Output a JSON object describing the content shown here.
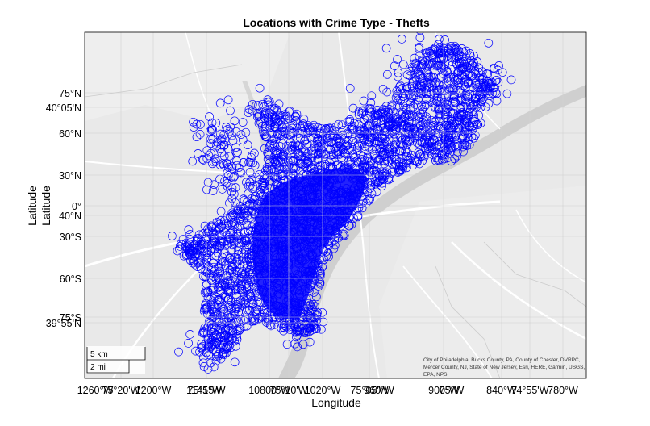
{
  "title": "Locations with Crime Type - Thefts",
  "xlabel": "Longitude",
  "ylabels": [
    "Latitude",
    "Latitude"
  ],
  "y_ticks": [
    {
      "label": "75°N"
    },
    {
      "label": "40°05'N"
    },
    {
      "label": "60°N"
    },
    {
      "label": "30°N"
    },
    {
      "label": "0°"
    },
    {
      "label": "40°N"
    },
    {
      "label": "30°S"
    },
    {
      "label": "60°S"
    },
    {
      "label": "75°S"
    },
    {
      "label": "39°55'N"
    }
  ],
  "x_ticks": [
    {
      "label": "1260°W"
    },
    {
      "label": "75°20'W"
    },
    {
      "label": "1200°W"
    },
    {
      "label": "75°15'W"
    },
    {
      "label": "1145°W"
    },
    {
      "label": "10800°W"
    },
    {
      "label": "75°10'W"
    },
    {
      "label": "1020°W"
    },
    {
      "label": "75°05'W"
    },
    {
      "label": "960°W"
    },
    {
      "label": "900°W"
    },
    {
      "label": "75°W"
    },
    {
      "label": "840°W"
    },
    {
      "label": "74°55'W"
    },
    {
      "label": "780°W"
    }
  ],
  "scalebar": {
    "km": "5 km",
    "mi": "2 mi"
  },
  "attribution": [
    "City of Philadelphia, Bucks County, PA, County of Chester, DVRPC,",
    "Mercer County, NJ, State of New Jersey, Esri, HERE, Garmin, USGS,",
    "EPA, NPS"
  ],
  "marker_color": "#0000ff",
  "map_background": "#e9e9e9",
  "water_color": "#cfcfcf"
}
